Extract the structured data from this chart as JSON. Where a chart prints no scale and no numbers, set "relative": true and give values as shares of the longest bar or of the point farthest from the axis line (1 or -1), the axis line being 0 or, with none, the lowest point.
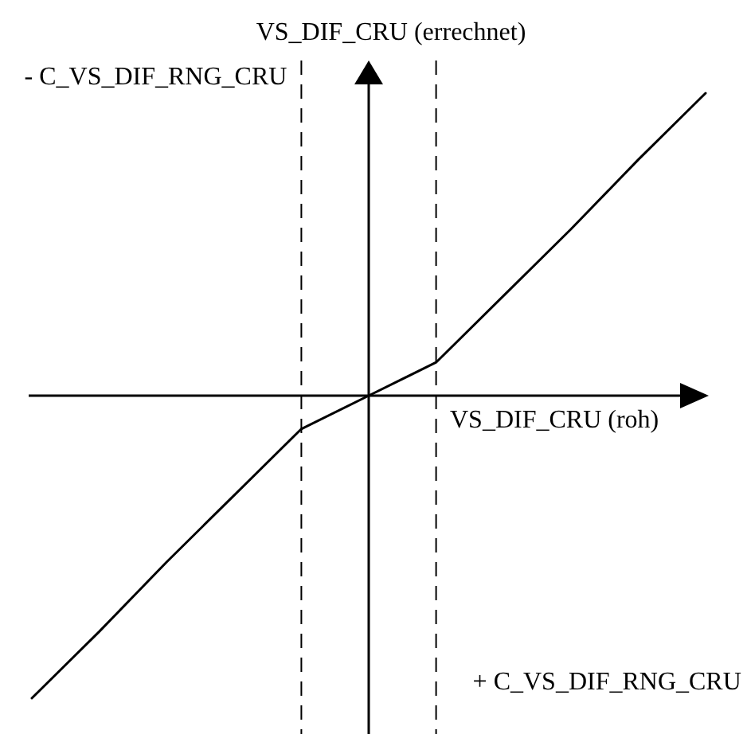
{
  "chart_data": {
    "type": "line",
    "relative": true,
    "xlabel": "VS_DIF_CRU (roh)",
    "ylabel": "VS_DIF_CRU (errechnet)",
    "categories": [
      null,
      null,
      null,
      null,
      null,
      null,
      null,
      null,
      null,
      null,
      null
    ],
    "series": [
      {
        "color": "#000000",
        "values": [
          -1,
          -0.78,
          -0.55,
          -0.33,
          -0.11,
          0,
          0.11,
          0.33,
          0.55,
          0.78,
          1
        ]
      }
    ],
    "annotations": [
      "- C_VS_DIF_RNG_CRU",
      "+ C_VS_DIF_RNG_CRU"
    ],
    "line_style": "solid"
  }
}
